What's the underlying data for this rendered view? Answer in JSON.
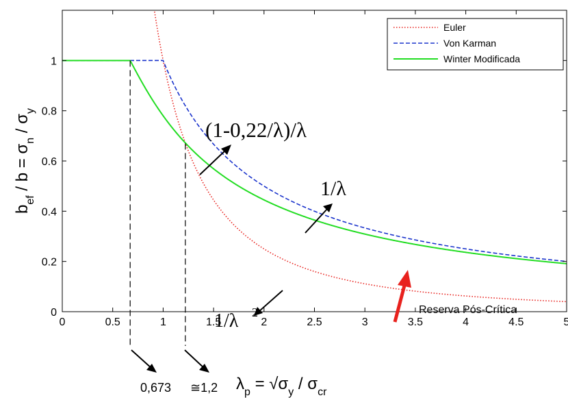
{
  "chart_data": {
    "type": "line",
    "xlim": [
      0,
      5
    ],
    "ylim": [
      0,
      1.2
    ],
    "x_ticks": [
      "0",
      "0.5",
      "1",
      "1.5",
      "2",
      "2.5",
      "3",
      "3.5",
      "4",
      "4.5",
      "5"
    ],
    "y_ticks": [
      "0",
      "0.2",
      "0.4",
      "0.6",
      "0.8",
      "1"
    ],
    "grid": false,
    "legend_position": "top-right",
    "ylabel": {
      "p1": "b",
      "s1": "ef",
      "p2": " / b = σ",
      "s2": "n",
      "p3": " / σ",
      "s3": "y"
    },
    "xlabel": {
      "p1": "λ",
      "s1": "p",
      "p2": " = √σ",
      "s2": "y",
      "p3": " / σ",
      "s3": "cr"
    },
    "series": [
      {
        "name": "Euler",
        "formula": "1/λ^2",
        "color": "#e8211d",
        "style": "dotted"
      },
      {
        "name": "Von Karman",
        "formula": "min(1, 1/λ)",
        "color": "#1a33cc",
        "style": "dashed"
      },
      {
        "name": "Winter Modificada",
        "formula": "λ ≤ 0.673 ? 1 : (1-0.22/λ)/λ",
        "color": "#22dd22",
        "style": "solid"
      }
    ],
    "markers": [
      {
        "x": 0.673,
        "y": 1.0,
        "label": "0,673"
      },
      {
        "x": 1.22,
        "y": 0.67,
        "label": "≅1,2"
      }
    ],
    "annotations": {
      "winter_formula": "(1-0,22/λ)/λ",
      "karman_formula": "1/λ",
      "euler_formula": "1/λ",
      "euler_exponent": "2",
      "reserve_label": "Reserva Pós-Crítica"
    }
  }
}
